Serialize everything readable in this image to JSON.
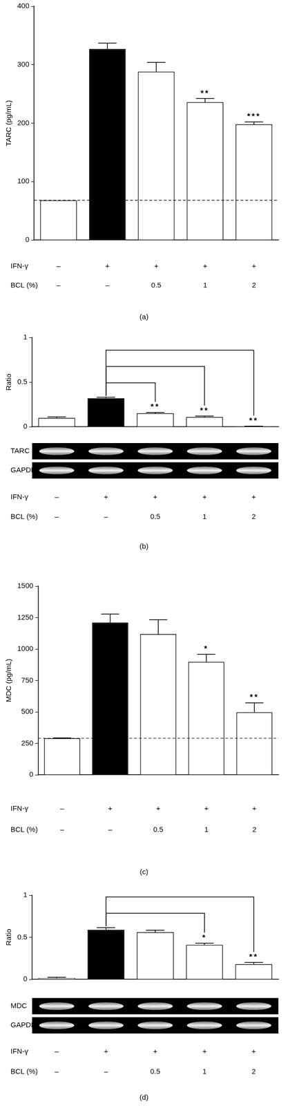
{
  "chart_data": [
    {
      "type": "bar",
      "panel": "(a)",
      "y_label": "TARC (pg/mL)",
      "categories": [
        null,
        null,
        null,
        null,
        null
      ],
      "values": [
        68,
        327,
        288,
        236,
        198
      ],
      "errors": [
        0,
        10,
        16,
        6,
        4
      ],
      "colors": [
        "#ffffff",
        "#000000",
        "#ffffff",
        "#ffffff",
        "#ffffff"
      ],
      "ylim": [
        0,
        400
      ],
      "yticks": [
        0,
        100,
        200,
        300,
        400
      ],
      "grid": false,
      "tick_labels": "y",
      "significance": [
        null,
        null,
        null,
        "**",
        "***"
      ],
      "baseline": 68,
      "conditions": [
        {
          "name": "IFN-γ",
          "values": [
            "–",
            "+",
            "+",
            "+",
            "+"
          ]
        },
        {
          "name": "BCL (%)",
          "values": [
            "–",
            "–",
            "0.5",
            "1",
            "2"
          ]
        }
      ]
    },
    {
      "type": "bar",
      "panel": "(b)",
      "y_label": "Ratio",
      "categories": [
        null,
        null,
        null,
        null,
        null
      ],
      "values": [
        0.1,
        0.32,
        0.15,
        0.11,
        0.005
      ],
      "errors": [
        0.01,
        0.01,
        0.01,
        0.01,
        0.002
      ],
      "colors": [
        "#ffffff",
        "#000000",
        "#ffffff",
        "#ffffff",
        "#ffffff"
      ],
      "ylim": [
        0,
        1
      ],
      "yticks": [
        0,
        0.5,
        1
      ],
      "grid": false,
      "tick_labels": "y",
      "significance": [
        null,
        null,
        "**",
        "**",
        "**"
      ],
      "comparisons": [
        [
          1,
          2
        ],
        [
          1,
          3
        ],
        [
          1,
          4
        ]
      ],
      "gel": [
        "TARC",
        "GAPDH"
      ],
      "conditions": [
        {
          "name": "IFN-γ",
          "values": [
            "–",
            "+",
            "+",
            "+",
            "+"
          ]
        },
        {
          "name": "BCL (%)",
          "values": [
            "–",
            "–",
            "0.5",
            "1",
            "2"
          ]
        }
      ]
    },
    {
      "type": "bar",
      "panel": "(c)",
      "y_label": "MDC (pg/mL)",
      "categories": [
        null,
        null,
        null,
        null,
        null
      ],
      "values": [
        290,
        1210,
        1118,
        898,
        497
      ],
      "errors": [
        3,
        68,
        115,
        60,
        75
      ],
      "colors": [
        "#ffffff",
        "#000000",
        "#ffffff",
        "#ffffff",
        "#ffffff"
      ],
      "ylim": [
        0,
        1500
      ],
      "yticks": [
        0,
        250,
        500,
        750,
        1000,
        1250,
        1500
      ],
      "grid": false,
      "tick_labels": "y",
      "significance": [
        null,
        null,
        null,
        "*",
        "**"
      ],
      "baseline": 290,
      "conditions": [
        {
          "name": "IFN-γ",
          "values": [
            "–",
            "+",
            "+",
            "+",
            "+"
          ]
        },
        {
          "name": "BCL (%)",
          "values": [
            "–",
            "–",
            "0.5",
            "1",
            "2"
          ]
        }
      ]
    },
    {
      "type": "bar",
      "panel": "(d)",
      "y_label": "Ratio",
      "categories": [
        null,
        null,
        null,
        null,
        null
      ],
      "values": [
        0.015,
        0.59,
        0.56,
        0.41,
        0.18
      ],
      "errors": [
        0.01,
        0.025,
        0.025,
        0.02,
        0.02
      ],
      "colors": [
        "#ffffff",
        "#000000",
        "#ffffff",
        "#ffffff",
        "#ffffff"
      ],
      "ylim": [
        0,
        1
      ],
      "yticks": [
        0,
        0.5,
        1
      ],
      "grid": false,
      "tick_labels": "y",
      "significance": [
        null,
        null,
        null,
        "*",
        "**"
      ],
      "comparisons": [
        [
          1,
          3
        ],
        [
          1,
          4
        ]
      ],
      "gel": [
        "MDC",
        "GAPDH"
      ],
      "conditions": [
        {
          "name": "IFN-γ",
          "values": [
            "–",
            "+",
            "+",
            "+",
            "+"
          ]
        },
        {
          "name": "BCL (%)",
          "values": [
            "–",
            "–",
            "0.5",
            "1",
            "2"
          ]
        }
      ]
    }
  ]
}
